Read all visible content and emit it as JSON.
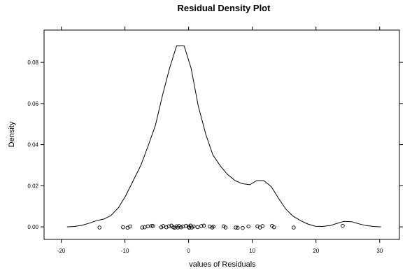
{
  "chart_data": {
    "type": "line",
    "title": "Residual Density Plot",
    "xlabel": "values of Residuals",
    "ylabel": "Density",
    "xlim": [
      -22.7,
      33.1
    ],
    "ylim": [
      -0.0061,
      0.0957
    ],
    "x_ticks": [
      -20,
      -10,
      0,
      10,
      20,
      30
    ],
    "x_tick_labels": [
      "-20",
      "-10",
      "0",
      "10",
      "20",
      "30"
    ],
    "y_ticks": [
      0,
      0.02,
      0.04,
      0.06,
      0.08
    ],
    "y_tick_labels": [
      "0.00",
      "0.02",
      "0.04",
      "0.06",
      "0.08"
    ],
    "grid": false,
    "series": [
      {
        "kind": "density-line",
        "color": "#000000",
        "x": [
          -19.1,
          -17.9,
          -16.8,
          -15.6,
          -14.5,
          -13.3,
          -12.2,
          -11.0,
          -9.9,
          -8.7,
          -7.5,
          -6.4,
          -5.2,
          -4.1,
          -3.0,
          -1.9,
          -0.7,
          0.4,
          1.5,
          2.7,
          3.8,
          5.0,
          6.1,
          7.3,
          8.4,
          9.6,
          10.7,
          11.8,
          13.0,
          14.1,
          15.3,
          16.4,
          17.6,
          18.7,
          19.9,
          21.0,
          22.2,
          23.3,
          24.4,
          25.6,
          26.7,
          27.9,
          29.0,
          30.2
        ],
        "y": [
          0.0,
          0.0002,
          0.0007,
          0.0018,
          0.003,
          0.0038,
          0.0055,
          0.0094,
          0.015,
          0.0225,
          0.03,
          0.039,
          0.0495,
          0.064,
          0.077,
          0.088,
          0.088,
          0.077,
          0.059,
          0.045,
          0.035,
          0.0295,
          0.0255,
          0.0225,
          0.021,
          0.0205,
          0.0225,
          0.0225,
          0.0195,
          0.014,
          0.0085,
          0.0052,
          0.003,
          0.0014,
          0.0003,
          0.0002,
          0.0006,
          0.0017,
          0.0027,
          0.0025,
          0.0015,
          0.0006,
          0.0002,
          0.0
        ]
      },
      {
        "kind": "rug-points",
        "color": "#000000",
        "x": [
          -14.0,
          -10.3,
          -9.6,
          -9.2,
          -7.3,
          -6.9,
          -6.4,
          -5.8,
          -5.6,
          -4.3,
          -4.0,
          -3.5,
          -3.1,
          -2.7,
          -2.4,
          -2.2,
          -1.9,
          -1.7,
          -1.5,
          -1.2,
          -0.9,
          -0.4,
          0.0,
          0.1,
          0.3,
          0.5,
          0.8,
          1.4,
          2.0,
          2.4,
          3.3,
          3.7,
          3.9,
          5.5,
          5.8,
          7.4,
          7.7,
          8.5,
          9.4,
          10.8,
          11.2,
          11.6,
          13.1,
          13.4,
          16.5,
          24.2
        ],
        "y": [
          -0.0003,
          -0.0002,
          -0.0004,
          0.0002,
          -0.0003,
          -0.0002,
          0.0003,
          0.0005,
          0.0004,
          -0.0002,
          0.0004,
          -0.0002,
          0.0003,
          0.0006,
          -0.0002,
          -0.0004,
          0.0003,
          -0.0003,
          0.0004,
          -0.0002,
          0.0002,
          0.0005,
          0.0001,
          -0.0004,
          0.0006,
          -0.0003,
          0.0002,
          -0.0001,
          0.0004,
          0.0006,
          0.0002,
          -0.0003,
          0.0001,
          0.0003,
          -0.0003,
          -0.0003,
          -0.0004,
          -0.0005,
          0.0002,
          0.0003,
          -0.0003,
          0.0004,
          0.0005,
          -0.0002,
          -0.0003,
          0.0005
        ]
      }
    ]
  }
}
